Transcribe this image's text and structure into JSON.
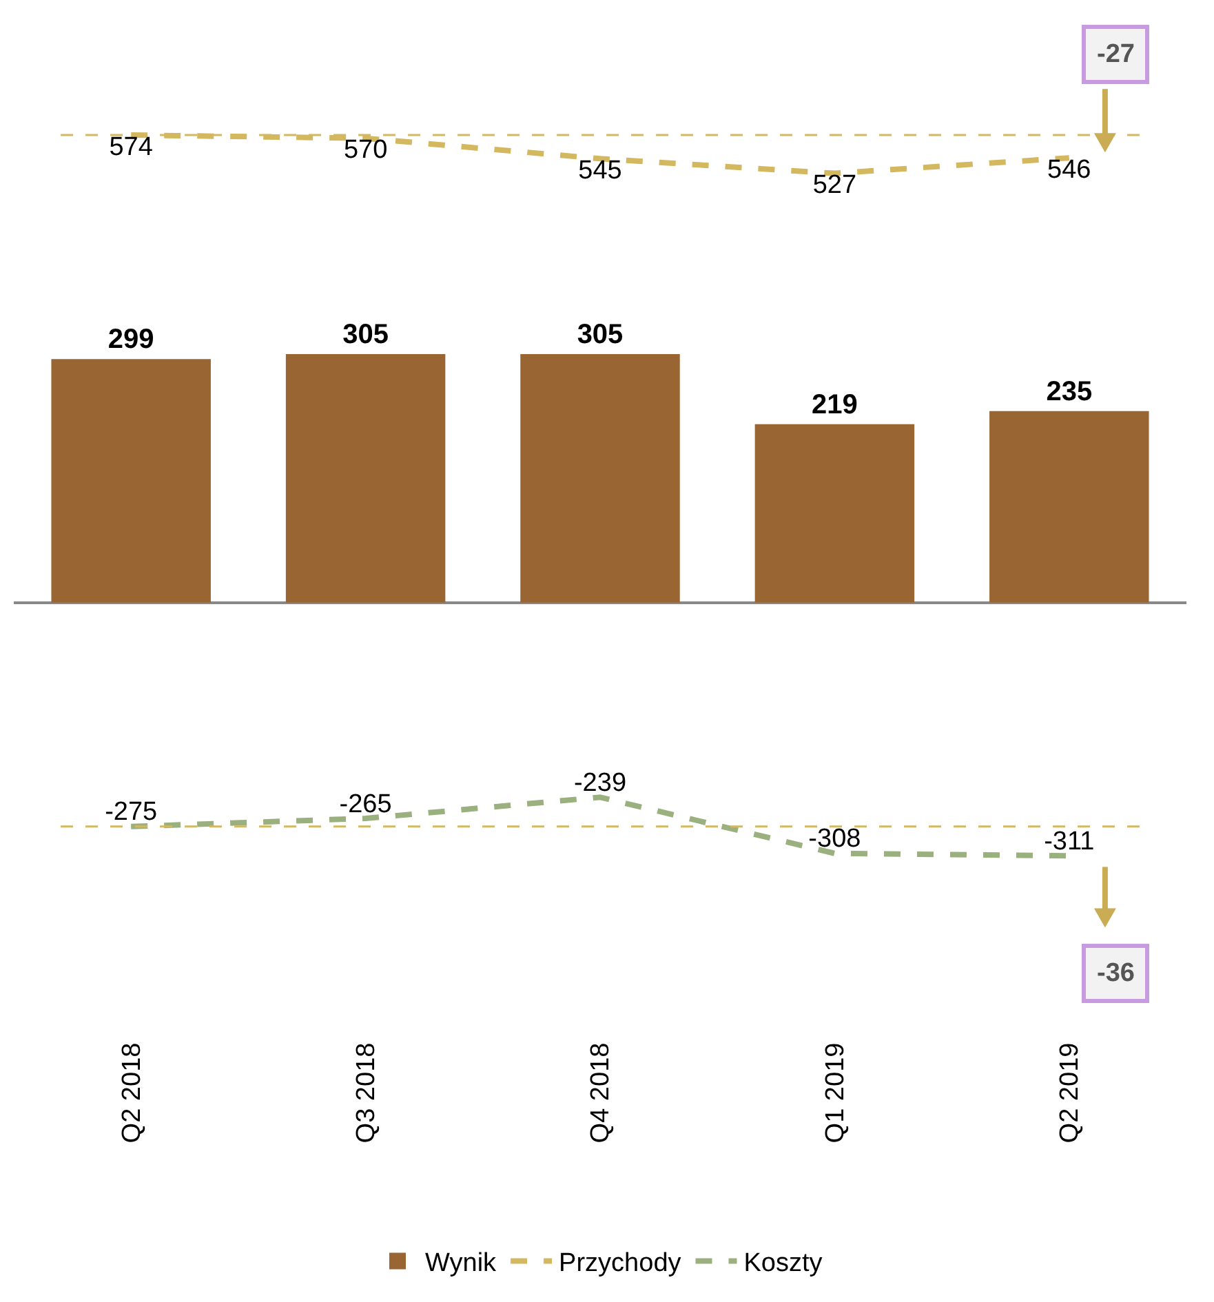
{
  "chart_data": {
    "type": "bar",
    "categories": [
      "Q2 2018",
      "Q3 2018",
      "Q4 2018",
      "Q1 2019",
      "Q2 2019"
    ],
    "series": [
      {
        "name": "Wynik",
        "color": "#996633",
        "values": [
          299,
          305,
          305,
          219,
          235
        ]
      },
      {
        "name": "Przychody",
        "type": "line",
        "color": "#d4b860",
        "values": [
          574,
          570,
          545,
          527,
          546
        ]
      },
      {
        "name": "Koszty",
        "type": "line",
        "color": "#9bb07f",
        "values": [
          -275,
          -265,
          -239,
          -308,
          -311
        ]
      }
    ],
    "tick_labels": "x",
    "data_labels": true,
    "marker": "none",
    "line_style": "dashed",
    "legend": "bottom",
    "grid": false,
    "ref_lines": [
      {
        "axis": "y",
        "value": 574,
        "color": "#d4b860",
        "line_style": "dashed"
      },
      {
        "axis": "y",
        "value": -275,
        "color": "#d4b860",
        "line_style": "dashed"
      }
    ],
    "annotations": [
      "-27",
      "-36"
    ]
  }
}
